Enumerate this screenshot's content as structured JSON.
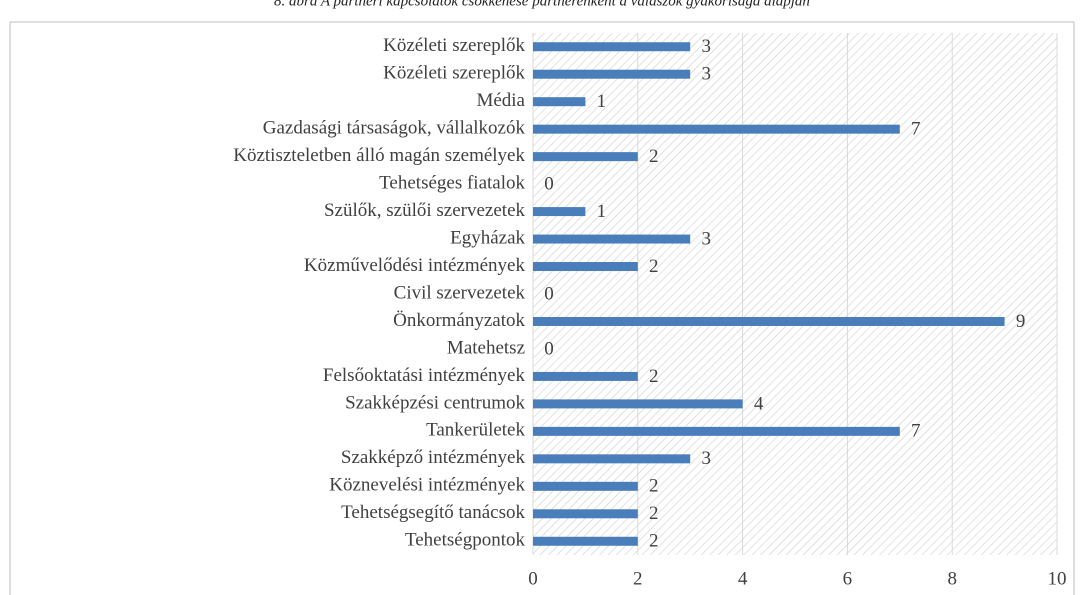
{
  "chart_data": {
    "type": "bar",
    "orientation": "horizontal",
    "title": "8. ábra A partneri kapcsolatok csökkenése partnerenként a válaszok gyakorisága alapján",
    "categories": [
      "Közéleti szereplők",
      "Közéleti szereplők",
      "Média",
      "Gazdasági társaságok, vállalkozók",
      "Köztiszteletben álló magán személyek",
      "Tehetséges fiatalok",
      "Szülők, szülői szervezetek",
      "Egyházak",
      "Közművelődési intézmények",
      "Civil szervezetek",
      "Önkormányzatok",
      "Matehetsz",
      "Felsőoktatási intézmények",
      "Szakképzési centrumok",
      "Tankerületek",
      "Szakképző intézmények",
      "Köznevelési intézmények",
      "Tehetségsegítő tanácsok",
      "Tehetségpontok"
    ],
    "values": [
      3,
      3,
      1,
      7,
      2,
      0,
      1,
      3,
      2,
      0,
      9,
      0,
      2,
      4,
      7,
      3,
      2,
      2,
      2
    ],
    "color": "#4a7ebb",
    "xlim": [
      0,
      10
    ],
    "xticks": [
      0,
      2,
      4,
      6,
      8,
      10
    ],
    "grid": true
  }
}
